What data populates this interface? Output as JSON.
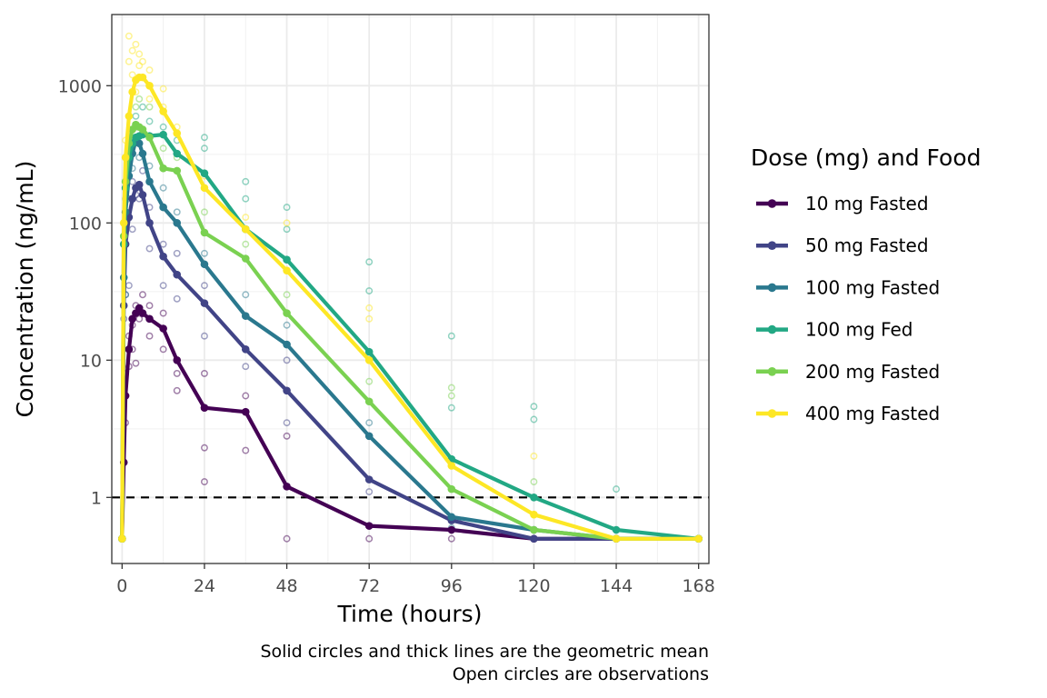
{
  "chart_data": {
    "type": "line",
    "xlabel": "Time (hours)",
    "ylabel": "Concentration (ng/mL)",
    "x_scale": "linear",
    "y_scale": "log",
    "xlim": [
      -3,
      171
    ],
    "ylim": [
      0.33,
      3300
    ],
    "x_ticks": [
      0,
      24,
      48,
      72,
      96,
      120,
      144,
      168
    ],
    "x_tick_labels": [
      "0",
      "24",
      "48",
      "72",
      "96",
      "120",
      "144",
      "168"
    ],
    "y_ticks": [
      1,
      10,
      100,
      1000
    ],
    "y_tick_labels": [
      "1",
      "10",
      "100",
      "1000"
    ],
    "reference_line": {
      "y": 1,
      "style": "dashed"
    },
    "grid": true,
    "legend": {
      "title": "Dose (mg) and Food",
      "position": "right"
    },
    "caption": [
      "Solid circles and thick lines are the geometric mean",
      "Open circles are observations"
    ],
    "series": [
      {
        "name": "10 mg Fasted",
        "color": "#440154",
        "x": [
          0,
          0.5,
          1,
          2,
          3,
          4,
          5,
          6,
          8,
          12,
          16,
          24,
          36,
          48,
          72,
          96,
          120,
          144,
          168
        ],
        "values": [
          0.5,
          1.8,
          5.5,
          12,
          20,
          22,
          24,
          22,
          20,
          17,
          10,
          4.5,
          4.2,
          1.2,
          0.62,
          0.58,
          0.5,
          0.5,
          0.5
        ]
      },
      {
        "name": "50 mg Fasted",
        "color": "#414487",
        "x": [
          0,
          0.5,
          1,
          2,
          3,
          4,
          5,
          6,
          8,
          12,
          16,
          24,
          36,
          48,
          72,
          96,
          120,
          144,
          168
        ],
        "values": [
          0.5,
          25,
          70,
          110,
          150,
          180,
          190,
          160,
          100,
          57,
          42,
          26,
          12,
          6,
          1.35,
          0.68,
          0.5,
          0.5,
          0.5
        ]
      },
      {
        "name": "100 mg Fasted",
        "color": "#2A788E",
        "x": [
          0,
          0.5,
          1,
          2,
          3,
          4,
          5,
          6,
          8,
          12,
          16,
          24,
          36,
          48,
          72,
          96,
          120,
          144,
          168
        ],
        "values": [
          0.5,
          40,
          120,
          220,
          320,
          400,
          380,
          320,
          200,
          130,
          100,
          50,
          21,
          13,
          2.8,
          0.72,
          0.58,
          0.5,
          0.5
        ]
      },
      {
        "name": "100 mg Fed",
        "color": "#22A884",
        "x": [
          0,
          0.5,
          1,
          2,
          3,
          4,
          5,
          6,
          8,
          12,
          16,
          24,
          36,
          48,
          72,
          96,
          120,
          144,
          168
        ],
        "values": [
          0.5,
          70,
          180,
          300,
          380,
          420,
          430,
          440,
          430,
          440,
          320,
          230,
          90,
          54,
          11.5,
          1.9,
          1.0,
          0.58,
          0.5
        ]
      },
      {
        "name": "200 mg Fasted",
        "color": "#7AD151",
        "x": [
          0,
          0.5,
          1,
          2,
          3,
          4,
          5,
          6,
          8,
          12,
          16,
          24,
          36,
          48,
          72,
          96,
          120,
          144,
          168
        ],
        "values": [
          0.5,
          80,
          200,
          380,
          480,
          520,
          500,
          480,
          420,
          250,
          240,
          85,
          55,
          22,
          5,
          1.15,
          0.58,
          0.5,
          0.5
        ]
      },
      {
        "name": "400 mg Fasted",
        "color": "#FDE725",
        "x": [
          0,
          0.5,
          1,
          2,
          3,
          4,
          5,
          6,
          8,
          12,
          16,
          24,
          36,
          48,
          72,
          96,
          120,
          144,
          168
        ],
        "values": [
          0.5,
          100,
          300,
          600,
          900,
          1100,
          1150,
          1150,
          1000,
          650,
          450,
          180,
          90,
          45,
          10,
          1.7,
          0.75,
          0.5,
          0.5
        ]
      }
    ],
    "observations": [
      {
        "series": "10 mg Fasted",
        "x": [
          0,
          0.5,
          1,
          1,
          2,
          2,
          3,
          3,
          4,
          4,
          5,
          6,
          8,
          8,
          12,
          12,
          16,
          16,
          24,
          24,
          24,
          36,
          36,
          48,
          48,
          72,
          96
        ],
        "y": [
          0.5,
          1.8,
          3.5,
          8,
          9,
          15,
          12,
          18,
          9.5,
          25,
          20,
          30,
          15,
          25,
          12,
          22,
          6,
          8,
          1.3,
          2.3,
          8,
          2.2,
          5.5,
          0.5,
          2.8,
          0.5,
          0.5
        ]
      },
      {
        "series": "50 mg Fasted",
        "x": [
          0,
          0.5,
          1,
          1,
          2,
          3,
          3,
          4,
          5,
          6,
          8,
          8,
          12,
          12,
          16,
          16,
          24,
          24,
          36,
          48,
          48,
          72
        ],
        "y": [
          0.5,
          20,
          30,
          70,
          35,
          90,
          200,
          160,
          150,
          240,
          65,
          130,
          35,
          70,
          28,
          60,
          15,
          35,
          9,
          3.5,
          10,
          1.1
        ]
      },
      {
        "series": "100 mg Fasted",
        "x": [
          0,
          1,
          2,
          3,
          4,
          5,
          6,
          8,
          12,
          16,
          24,
          36,
          48,
          72,
          96
        ],
        "y": [
          0.5,
          30,
          150,
          250,
          500,
          300,
          450,
          260,
          180,
          120,
          60,
          30,
          18,
          3.5,
          0.6
        ]
      },
      {
        "series": "100 mg Fed",
        "x": [
          0,
          1,
          2,
          4,
          6,
          8,
          12,
          16,
          24,
          24,
          36,
          36,
          48,
          48,
          72,
          72,
          96,
          96,
          120,
          120,
          144
        ],
        "y": [
          0.5,
          100,
          250,
          600,
          700,
          550,
          500,
          400,
          350,
          420,
          150,
          200,
          90,
          130,
          32,
          52,
          4.5,
          15,
          3.7,
          4.6,
          1.15
        ]
      },
      {
        "series": "200 mg Fasted",
        "x": [
          0,
          1,
          2,
          4,
          5,
          8,
          12,
          16,
          24,
          36,
          48,
          72,
          96,
          96,
          120
        ],
        "y": [
          0.5,
          150,
          300,
          700,
          800,
          700,
          350,
          300,
          120,
          70,
          30,
          7,
          5.5,
          6.3,
          1.3
        ]
      },
      {
        "series": "400 mg Fasted",
        "x": [
          0,
          1,
          2,
          2,
          3,
          3,
          4,
          4,
          5,
          5,
          6,
          8,
          8,
          12,
          12,
          16,
          24,
          36,
          48,
          72,
          72,
          96,
          120
        ],
        "y": [
          0.5,
          400,
          1500,
          2300,
          1200,
          1800,
          900,
          2000,
          1400,
          1700,
          1500,
          800,
          1300,
          700,
          950,
          500,
          220,
          110,
          100,
          20,
          24,
          1.8,
          2.0
        ]
      }
    ]
  }
}
